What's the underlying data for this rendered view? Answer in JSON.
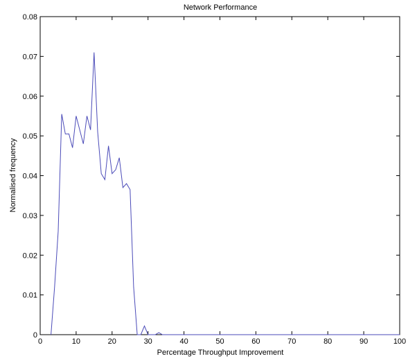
{
  "chart_data": {
    "type": "line",
    "title": "Network Performance",
    "xlabel": "Percentage Throughput Improvement",
    "ylabel": "Normalised frequency",
    "xlim": [
      0,
      100
    ],
    "ylim": [
      0,
      0.08
    ],
    "x_ticks": [
      0,
      10,
      20,
      30,
      40,
      50,
      60,
      70,
      80,
      90,
      100
    ],
    "y_ticks": [
      0,
      0.01,
      0.02,
      0.03,
      0.04,
      0.05,
      0.06,
      0.07,
      0.08
    ],
    "x_tick_labels": [
      "0",
      "10",
      "20",
      "30",
      "40",
      "50",
      "60",
      "70",
      "80",
      "90",
      "100"
    ],
    "y_tick_labels": [
      "0",
      "0.01",
      "0.02",
      "0.03",
      "0.04",
      "0.05",
      "0.06",
      "0.07",
      "0.08"
    ],
    "grid": false,
    "line_color": "#4a4ab8",
    "series": [
      {
        "x": [
          3,
          4,
          5,
          6,
          7,
          8,
          9,
          10,
          11,
          12,
          13,
          14,
          15,
          16,
          17,
          18,
          19,
          20,
          21,
          22,
          23,
          24,
          25,
          26,
          27,
          28,
          29,
          30,
          31,
          32,
          33,
          34,
          35,
          100
        ],
        "y": [
          0,
          0.012,
          0.026,
          0.0555,
          0.0505,
          0.0505,
          0.047,
          0.055,
          0.0515,
          0.048,
          0.055,
          0.0515,
          0.071,
          0.051,
          0.0405,
          0.039,
          0.0475,
          0.0405,
          0.0415,
          0.0445,
          0.037,
          0.038,
          0.0365,
          0.012,
          0,
          0,
          0.0022,
          0,
          0,
          0,
          0.0005,
          0,
          0,
          0
        ]
      }
    ]
  }
}
